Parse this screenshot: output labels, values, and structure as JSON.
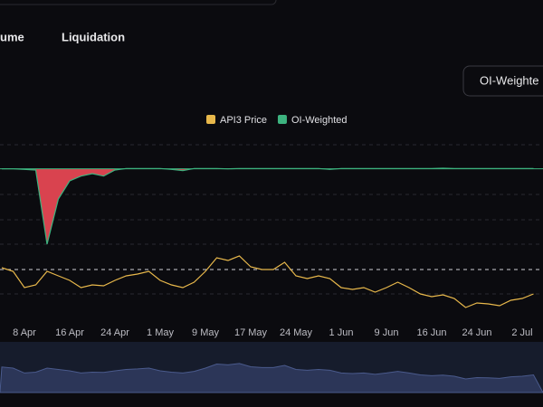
{
  "tabs": [
    "ume",
    "Liquidation"
  ],
  "button": "OI-Weighte",
  "chart_data": {
    "type": "line",
    "categories": [
      null,
      null,
      "8 Apr",
      null,
      null,
      null,
      "16 Apr",
      null,
      null,
      null,
      "24 Apr",
      null,
      null,
      null,
      "1 May",
      null,
      null,
      null,
      "9 May",
      null,
      null,
      null,
      "17 May",
      null,
      null,
      null,
      "24 May",
      null,
      null,
      null,
      "1 Jun",
      null,
      null,
      null,
      "9 Jun",
      null,
      null,
      null,
      "16 Jun",
      null,
      null,
      null,
      "24 Jun",
      null,
      null,
      null,
      "2 Jul",
      null
    ],
    "series": [
      {
        "name": "API3 Price",
        "color": "#e8b84b",
        "values": [
          64,
          60,
          42,
          45,
          60,
          55,
          50,
          42,
          45,
          44,
          50,
          55,
          57,
          60,
          50,
          45,
          42,
          48,
          60,
          75,
          72,
          77,
          65,
          62,
          62,
          70,
          55,
          52,
          55,
          52,
          42,
          40,
          42,
          37,
          42,
          48,
          42,
          35,
          32,
          34,
          30,
          20,
          25,
          24,
          22,
          28,
          30,
          35
        ]
      },
      {
        "name": "OI-Weighted",
        "color": "#3db37f",
        "negative_color": "#d9434f",
        "axis": "y2",
        "values": [
          0,
          0,
          -0.001,
          -0.002,
          -0.125,
          -0.05,
          -0.02,
          -0.012,
          -0.008,
          -0.012,
          -0.002,
          0.0005,
          0.0005,
          0.0005,
          0.0005,
          -0.001,
          -0.003,
          0.0005,
          0.0005,
          0.0005,
          0,
          0.0005,
          0.0005,
          0.0005,
          0.0005,
          0.0005,
          0.0005,
          0.0005,
          0.0005,
          -0.001,
          0.0005,
          0.0005,
          0.0005,
          0.0005,
          0.0005,
          0.0005,
          0.0005,
          0.0005,
          0.0005,
          0.001,
          0.0005,
          0.0005,
          0.0005,
          0.0005,
          0.0005,
          0.0005,
          0.0005,
          0.0005
        ]
      }
    ],
    "ylim": [
      0,
      200
    ],
    "y2lim": [
      -0.26,
      0.04
    ]
  }
}
